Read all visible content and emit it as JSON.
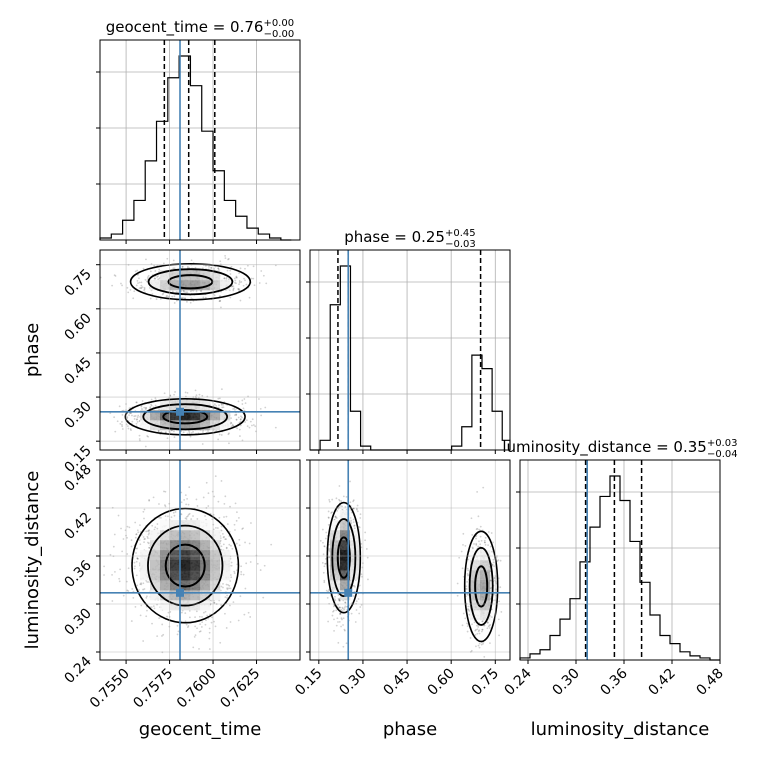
{
  "chart_data": {
    "type": "corner",
    "parameters": [
      "geocent_time",
      "phase",
      "luminosity_distance"
    ],
    "axis_labels": {
      "geocent_time": "geocent_time",
      "phase": "phase",
      "luminosity_distance": "luminosity_distance"
    },
    "ranges": {
      "geocent_time": [
        0.7535,
        0.765
      ],
      "phase": [
        0.12,
        0.8
      ],
      "luminosity_distance": [
        0.23,
        0.48
      ]
    },
    "ticks": {
      "geocent_time": [
        "0.7550",
        "0.7575",
        "0.7600",
        "0.7625"
      ],
      "phase": [
        "0.15",
        "0.30",
        "0.45",
        "0.60",
        "0.75"
      ],
      "luminosity_distance": [
        "0.24",
        "0.30",
        "0.36",
        "0.42",
        "0.48"
      ]
    },
    "titles": {
      "geocent_time": {
        "name": "geocent_time",
        "median": "0.76",
        "plus": "+0.00",
        "minus": "−0.00"
      },
      "phase": {
        "name": "phase",
        "median": "0.25",
        "plus": "+0.45",
        "minus": "−0.03"
      },
      "luminosity_distance": {
        "name": "luminosity_distance",
        "median": "0.35",
        "plus": "+0.03",
        "minus": "−0.04"
      }
    },
    "truths": {
      "geocent_time": 0.7581,
      "phase": 0.25,
      "luminosity_distance": 0.314
    },
    "quantiles": {
      "geocent_time": [
        0.7572,
        0.7586,
        0.7601
      ],
      "phase": [
        0.215,
        0.25,
        0.7
      ],
      "luminosity_distance": [
        0.312,
        0.348,
        0.382
      ]
    },
    "histograms": {
      "geocent_time": {
        "edges": [
          0.7535,
          0.75415,
          0.7548,
          0.75545,
          0.7561,
          0.75675,
          0.7574,
          0.75805,
          0.7587,
          0.75935,
          0.76,
          0.76065,
          0.7613,
          0.76195,
          0.7626,
          0.76325,
          0.7639,
          0.7645
        ],
        "counts": [
          1,
          3,
          10,
          20,
          40,
          60,
          82,
          93,
          78,
          55,
          35,
          20,
          12,
          6,
          3,
          1,
          0
        ]
      },
      "phase": {
        "edges": [
          0.12,
          0.1544,
          0.1888,
          0.2232,
          0.2576,
          0.292,
          0.3264,
          0.3608,
          0.3952,
          0.4296,
          0.464,
          0.4984,
          0.5328,
          0.5672,
          0.6016,
          0.636,
          0.6704,
          0.7048,
          0.7392,
          0.7736,
          0.8
        ],
        "counts": [
          0,
          5,
          75,
          95,
          20,
          2,
          0,
          0,
          0,
          0,
          0,
          0,
          0,
          0,
          2,
          12,
          49,
          42,
          20,
          5
        ]
      },
      "luminosity_distance": {
        "edges": [
          0.23,
          0.2425,
          0.255,
          0.2675,
          0.28,
          0.2925,
          0.305,
          0.3175,
          0.33,
          0.3425,
          0.355,
          0.3675,
          0.38,
          0.3925,
          0.405,
          0.4175,
          0.43,
          0.4425,
          0.455,
          0.4675,
          0.48
        ],
        "counts": [
          1,
          3,
          5,
          12,
          20,
          30,
          48,
          65,
          80,
          90,
          78,
          58,
          38,
          22,
          12,
          8,
          4,
          2,
          1,
          0
        ]
      }
    },
    "blobs": [
      {
        "pair": [
          "geocent_time",
          "phase"
        ],
        "center": [
          0.7587,
          0.692
        ],
        "sigma": [
          0.00135,
          0.024
        ],
        "weight": 0.35
      },
      {
        "pair": [
          "geocent_time",
          "phase"
        ],
        "center": [
          0.7584,
          0.233
        ],
        "sigma": [
          0.00135,
          0.024
        ],
        "weight": 0.65
      },
      {
        "pair": [
          "geocent_time",
          "luminosity_distance"
        ],
        "center": [
          0.7584,
          0.348
        ],
        "sigma": [
          0.0012,
          0.028
        ],
        "weight": 1.0
      },
      {
        "pair": [
          "phase",
          "luminosity_distance"
        ],
        "center": [
          0.235,
          0.358
        ],
        "sigma": [
          0.022,
          0.027
        ],
        "weight": 0.65
      },
      {
        "pair": [
          "phase",
          "luminosity_distance"
        ],
        "center": [
          0.702,
          0.322
        ],
        "sigma": [
          0.022,
          0.027
        ],
        "weight": 0.35
      }
    ]
  }
}
